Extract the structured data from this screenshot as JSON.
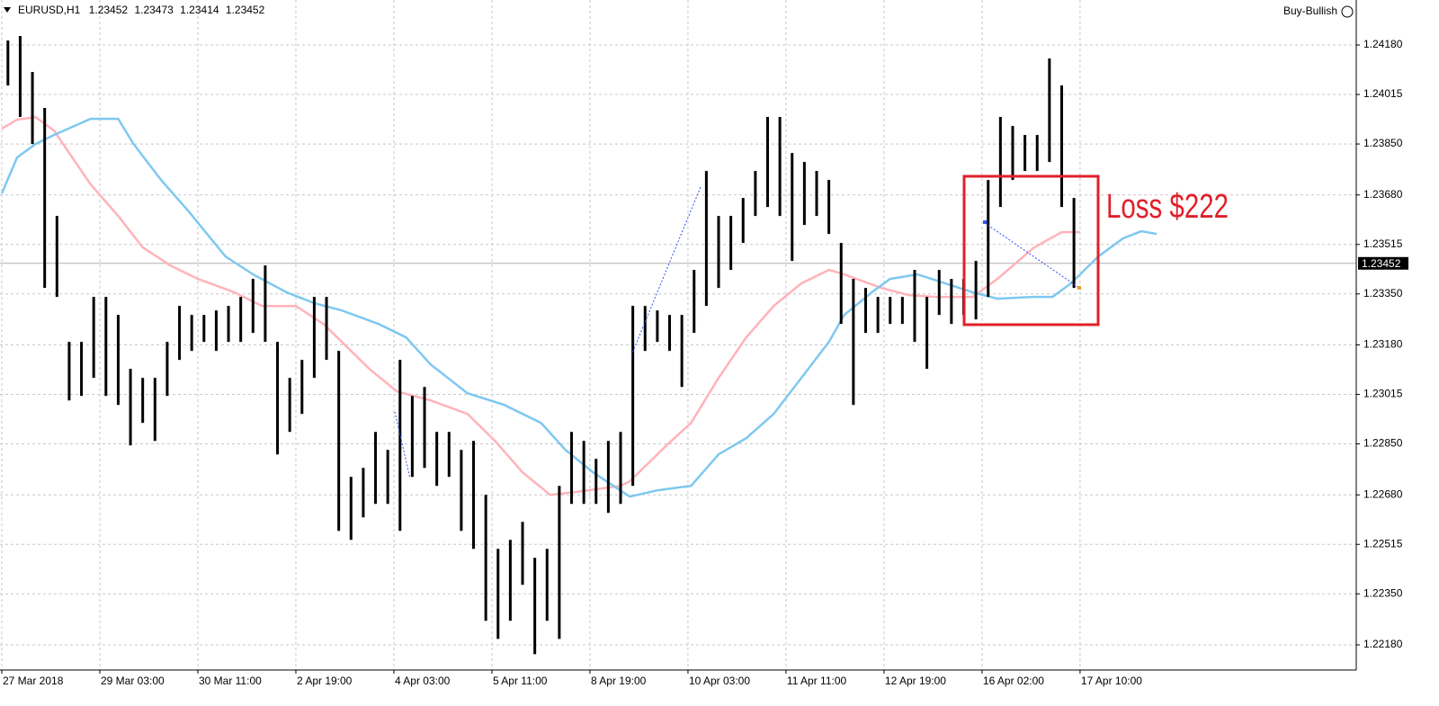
{
  "chart_data": {
    "type": "range",
    "title": "EURUSD,H1",
    "quote": [
      1.23452,
      1.23473,
      1.23414,
      1.23452
    ],
    "indicator": "Buy-Bullish",
    "annotation": "Loss $222",
    "current_price": 1.23452,
    "xlim": [
      0,
      443
    ],
    "xticks": [
      {
        "value": 0,
        "label": "27 Mar 2018"
      },
      {
        "value": 32,
        "label": "29 Mar 03:00"
      },
      {
        "value": 64,
        "label": "30 Mar 11:00"
      },
      {
        "value": 96,
        "label": "2 Apr 19:00"
      },
      {
        "value": 128,
        "label": "4 Apr 03:00"
      },
      {
        "value": 160,
        "label": "5 Apr 11:00"
      },
      {
        "value": 192,
        "label": "8 Apr 19:00"
      },
      {
        "value": 224,
        "label": "10 Apr 03:00"
      },
      {
        "value": 256,
        "label": "11 Apr 11:00"
      },
      {
        "value": 288,
        "label": "12 Apr 19:00"
      },
      {
        "value": 320,
        "label": "16 Apr 02:00"
      },
      {
        "value": 352,
        "label": "17 Apr 10:00"
      }
    ],
    "ylim": [
      1.22096,
      1.24315
    ],
    "yticks": [
      {
        "value": 1.2418,
        "label": "1.24180"
      },
      {
        "value": 1.24015,
        "label": "1.24015"
      },
      {
        "value": 1.2385,
        "label": "1.23850"
      },
      {
        "value": 1.2368,
        "label": "1.23680"
      },
      {
        "value": 1.23515,
        "label": "1.23515"
      },
      {
        "value": 1.2335,
        "label": "1.23350"
      },
      {
        "value": 1.2318,
        "label": "1.23180"
      },
      {
        "value": 1.23015,
        "label": "1.23015"
      },
      {
        "value": 1.2285,
        "label": "1.22850"
      },
      {
        "value": 1.2268,
        "label": "1.22680"
      },
      {
        "value": 1.22515,
        "label": "1.22515"
      },
      {
        "value": 1.2235,
        "label": "1.22350"
      },
      {
        "value": 1.2218,
        "label": "1.22180"
      }
    ],
    "grid": true,
    "price": {
      "color": "#000000",
      "x": [
        2,
        6,
        10,
        14,
        18,
        22,
        26,
        30,
        34,
        38,
        42,
        46,
        50,
        54,
        58,
        62,
        66,
        70,
        74,
        78,
        82,
        86,
        90,
        94,
        98,
        102,
        106,
        110,
        114,
        118,
        122,
        126,
        130,
        134,
        138,
        142,
        146,
        150,
        154,
        158,
        162,
        166,
        170,
        174,
        178,
        182,
        186,
        190,
        194,
        198,
        202,
        206,
        210,
        214,
        218,
        222,
        226,
        230,
        234,
        238,
        242,
        246,
        250,
        254,
        258,
        262,
        266,
        270,
        274,
        278,
        282,
        286,
        290,
        294,
        298,
        302,
        306,
        310,
        314,
        318,
        322,
        326,
        330,
        334,
        338,
        342,
        346,
        350
      ],
      "high": [
        1.24195,
        1.2421,
        1.2409,
        1.2397,
        1.2361,
        1.2319,
        1.2319,
        1.2334,
        1.2334,
        1.2328,
        1.231,
        1.2307,
        1.2307,
        1.2319,
        1.2331,
        1.2328,
        1.2328,
        1.23295,
        1.2331,
        1.2334,
        1.234,
        1.23445,
        1.2319,
        1.2307,
        1.2313,
        1.2334,
        1.2334,
        1.2316,
        1.2274,
        1.2277,
        1.2289,
        1.2283,
        1.2313,
        1.2301,
        1.2304,
        1.2289,
        1.2289,
        1.2283,
        1.2286,
        1.2268,
        1.225,
        1.2253,
        1.2259,
        1.2247,
        1.225,
        1.2271,
        1.2289,
        1.2286,
        1.228,
        1.2286,
        1.2289,
        1.2331,
        1.2331,
        1.23295,
        1.2328,
        1.2328,
        1.2343,
        1.2376,
        1.2361,
        1.2361,
        1.2367,
        1.2376,
        1.2394,
        1.2394,
        1.2382,
        1.2379,
        1.2376,
        1.2373,
        1.2352,
        1.234,
        1.2337,
        1.2334,
        1.2334,
        1.2334,
        1.2343,
        1.2334,
        1.2343,
        1.234,
        1.234,
        1.2346,
        1.2373,
        1.2394,
        1.2391,
        1.2388,
        1.2388,
        1.24135,
        1.24045,
        1.2367
      ],
      "low": [
        1.24045,
        1.2394,
        1.2385,
        1.2337,
        1.2334,
        1.22995,
        1.2301,
        1.2307,
        1.2301,
        1.2298,
        1.22845,
        1.2292,
        1.2286,
        1.2301,
        1.2313,
        1.2316,
        1.2319,
        1.2316,
        1.2319,
        1.2319,
        1.2322,
        1.2319,
        1.22815,
        1.2289,
        1.2295,
        1.2307,
        1.2313,
        1.2256,
        1.2253,
        1.22605,
        1.2265,
        1.2265,
        1.2256,
        1.2274,
        1.2277,
        1.2271,
        1.2274,
        1.2256,
        1.225,
        1.2226,
        1.222,
        1.2226,
        1.2238,
        1.22149,
        1.2226,
        1.222,
        1.2265,
        1.2265,
        1.2265,
        1.2262,
        1.2265,
        1.2271,
        1.2316,
        1.2319,
        1.2316,
        1.2304,
        1.2322,
        1.2331,
        1.2337,
        1.2343,
        1.2352,
        1.2361,
        1.2364,
        1.2361,
        1.2346,
        1.2358,
        1.2361,
        1.2355,
        1.2325,
        1.2298,
        1.2322,
        1.2322,
        1.2325,
        1.2325,
        1.2319,
        1.231,
        1.2328,
        1.2325,
        1.2328,
        1.23265,
        1.2334,
        1.2364,
        1.2373,
        1.2376,
        1.2376,
        1.2379,
        1.2364,
        1.2337
      ]
    },
    "series": [
      {
        "color": "#ffb3ba",
        "x": [
          0,
          5,
          11,
          17,
          23,
          29,
          38,
          46,
          55,
          64,
          76,
          85,
          96,
          105,
          111,
          120,
          129,
          140,
          152,
          161,
          170,
          179,
          187,
          202,
          205,
          217,
          225,
          234,
          243,
          252,
          261,
          270,
          275,
          287,
          296,
          305,
          317,
          325,
          337,
          346,
          352
        ],
        "values": [
          1.23901,
          1.23931,
          1.2394,
          1.23895,
          1.23805,
          1.23715,
          1.2361,
          1.23505,
          1.23445,
          1.234,
          1.23355,
          1.2331,
          1.2331,
          1.2325,
          1.2319,
          1.231,
          1.23025,
          1.22995,
          1.2295,
          1.2286,
          1.22755,
          1.2268,
          1.22689,
          1.2271,
          1.22725,
          1.22845,
          1.2292,
          1.2307,
          1.23205,
          1.2331,
          1.23385,
          1.2343,
          1.23415,
          1.2337,
          1.23346,
          1.2334,
          1.2334,
          1.234,
          1.23505,
          1.23556,
          1.23556
        ]
      },
      {
        "color": "#7ec8f0",
        "x": [
          0,
          5,
          11,
          17,
          29,
          38,
          43,
          52,
          61,
          73,
          82,
          93,
          102,
          111,
          123,
          132,
          140,
          152,
          164,
          176,
          184,
          193,
          205,
          214,
          225,
          234,
          243,
          252,
          261,
          270,
          275,
          284,
          290,
          299,
          308,
          317,
          325,
          337,
          343,
          349,
          358,
          366,
          372,
          377
        ],
        "values": [
          1.23685,
          1.23805,
          1.2385,
          1.2388,
          1.23934,
          1.23934,
          1.2385,
          1.2373,
          1.23625,
          1.23475,
          1.23415,
          1.23355,
          1.23319,
          1.23295,
          1.2325,
          1.23205,
          1.23115,
          1.23019,
          1.2298,
          1.2292,
          1.2283,
          1.22755,
          1.22674,
          1.22695,
          1.2271,
          1.22815,
          1.22869,
          1.2295,
          1.2307,
          1.2319,
          1.2328,
          1.23355,
          1.234,
          1.23415,
          1.23385,
          1.23355,
          1.23334,
          1.2334,
          1.2334,
          1.23385,
          1.23475,
          1.23535,
          1.23559,
          1.2355
        ]
      }
    ]
  }
}
